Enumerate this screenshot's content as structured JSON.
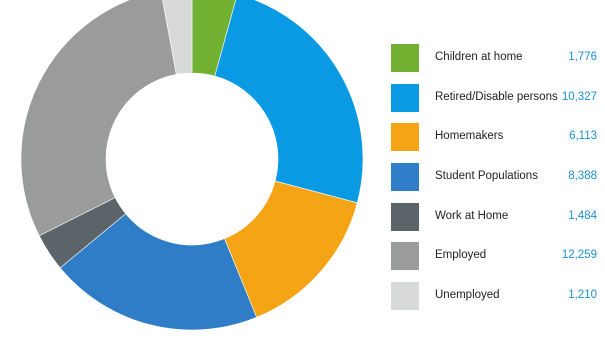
{
  "chart_data": {
    "type": "pie",
    "variant": "donut",
    "title": "",
    "legend_position": "right",
    "categories": [
      "Children at home",
      "Retired/Disable persons",
      "Homemakers",
      "Student Populations",
      "Work at Home",
      "Employed",
      "Unemployed"
    ],
    "values": [
      1776,
      10327,
      6113,
      8388,
      1484,
      12259,
      1210
    ],
    "value_labels": [
      "1,776",
      "10,327",
      "6,113",
      "8,388",
      "1,484",
      "12,259",
      "1,210"
    ],
    "colors": [
      "#72b032",
      "#0a9ae4",
      "#f5a416",
      "#2e7dc6",
      "#5b6468",
      "#999c9b",
      "#d8dada"
    ]
  }
}
